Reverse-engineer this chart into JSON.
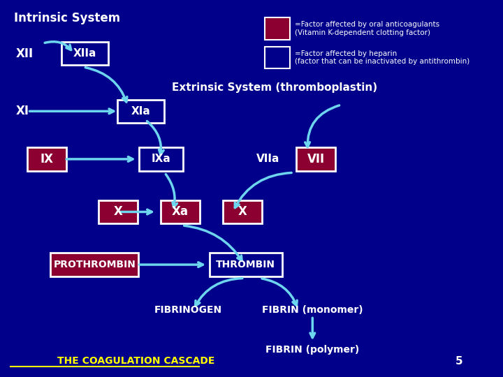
{
  "bg_color": "#00008B",
  "dark_red": "#8B0030",
  "white": "#FFFFFF",
  "cyan": "#6DD5ED",
  "yellow": "#FFFF00",
  "title_text": "Intrinsic System",
  "extrinsic_text": "Extrinsic System (thromboplastin)",
  "bottom_text": "THE COAGULATION CASCADE",
  "page_num": "5"
}
